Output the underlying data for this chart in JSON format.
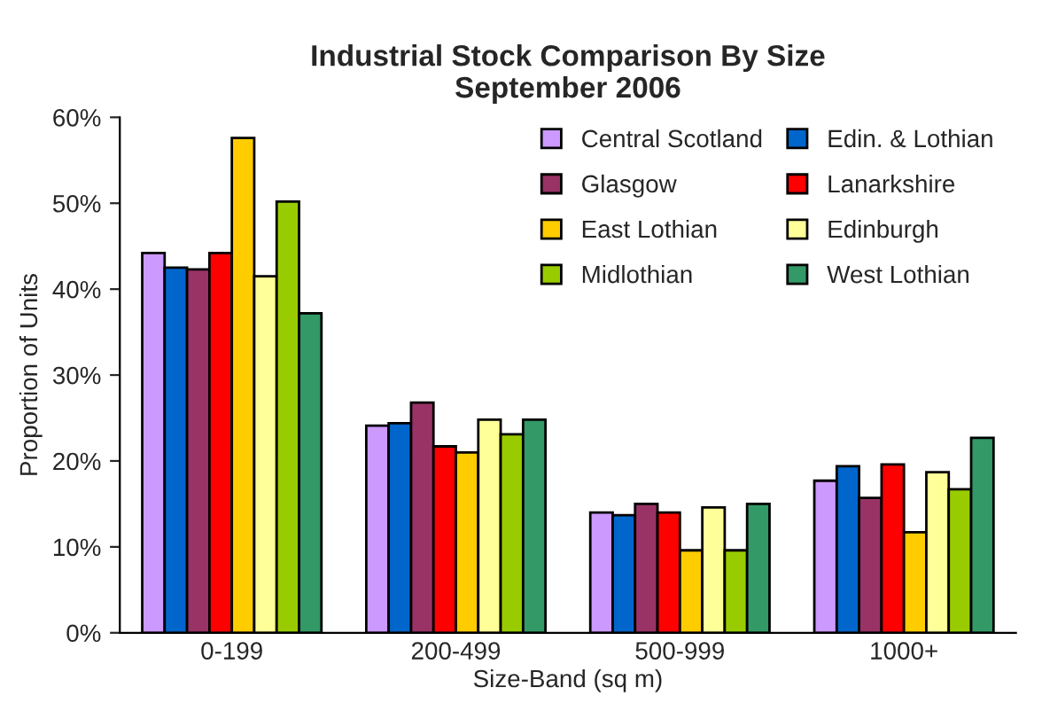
{
  "chart_data": {
    "type": "bar",
    "title": "Industrial Stock Comparison By Size\nSeptember 2006",
    "xlabel": "Size-Band (sq m)",
    "ylabel": "Proportion of Units",
    "categories": [
      "0-199",
      "200-499",
      "500-999",
      "1000+"
    ],
    "series": [
      {
        "name": "Central Scotland",
        "color": "#cc99ff",
        "values": [
          44.2,
          24.1,
          14.0,
          17.7
        ]
      },
      {
        "name": "Edin. & Lothian",
        "color": "#0066cc",
        "values": [
          42.5,
          24.4,
          13.7,
          19.4
        ]
      },
      {
        "name": "Glasgow",
        "color": "#993366",
        "values": [
          42.3,
          26.8,
          15.0,
          15.7
        ]
      },
      {
        "name": "Lanarkshire",
        "color": "#ff0000",
        "values": [
          44.2,
          21.7,
          14.0,
          19.6
        ]
      },
      {
        "name": "East Lothian",
        "color": "#ffcc00",
        "values": [
          57.6,
          21.0,
          9.6,
          11.7
        ]
      },
      {
        "name": "Edinburgh",
        "color": "#ffff99",
        "values": [
          41.5,
          24.8,
          14.6,
          18.7
        ]
      },
      {
        "name": "Midlothian",
        "color": "#99cc00",
        "values": [
          50.2,
          23.1,
          9.6,
          16.7
        ]
      },
      {
        "name": "West Lothian",
        "color": "#339966",
        "values": [
          37.2,
          24.8,
          15.0,
          22.7
        ]
      }
    ],
    "ylim": [
      0,
      60
    ],
    "yticks": [
      {
        "value": 0,
        "label": "0%"
      },
      {
        "value": 10,
        "label": "10%"
      },
      {
        "value": 20,
        "label": "20%"
      },
      {
        "value": 30,
        "label": "30%"
      },
      {
        "value": 40,
        "label": "40%"
      },
      {
        "value": 50,
        "label": "50%"
      },
      {
        "value": 60,
        "label": "60%"
      }
    ],
    "grid": false,
    "legend": "top right"
  }
}
